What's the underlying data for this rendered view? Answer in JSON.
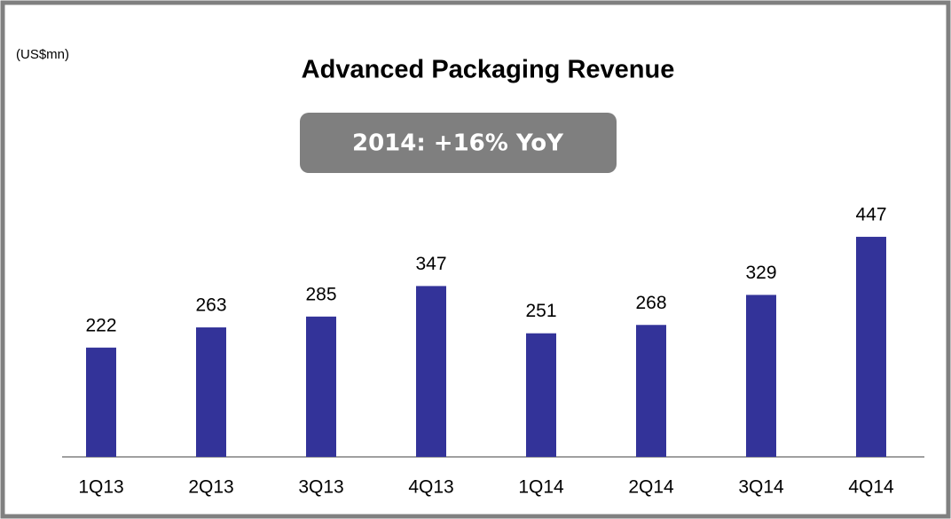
{
  "chart_data": {
    "type": "bar",
    "title": "Advanced Packaging Revenue",
    "unit_label": "(US$mn)",
    "annotation": "2014: +16% YoY",
    "categories": [
      "1Q13",
      "2Q13",
      "3Q13",
      "4Q13",
      "1Q14",
      "2Q14",
      "3Q14",
      "4Q14"
    ],
    "values": [
      222,
      263,
      285,
      347,
      251,
      268,
      329,
      447
    ],
    "color": "#333399"
  }
}
